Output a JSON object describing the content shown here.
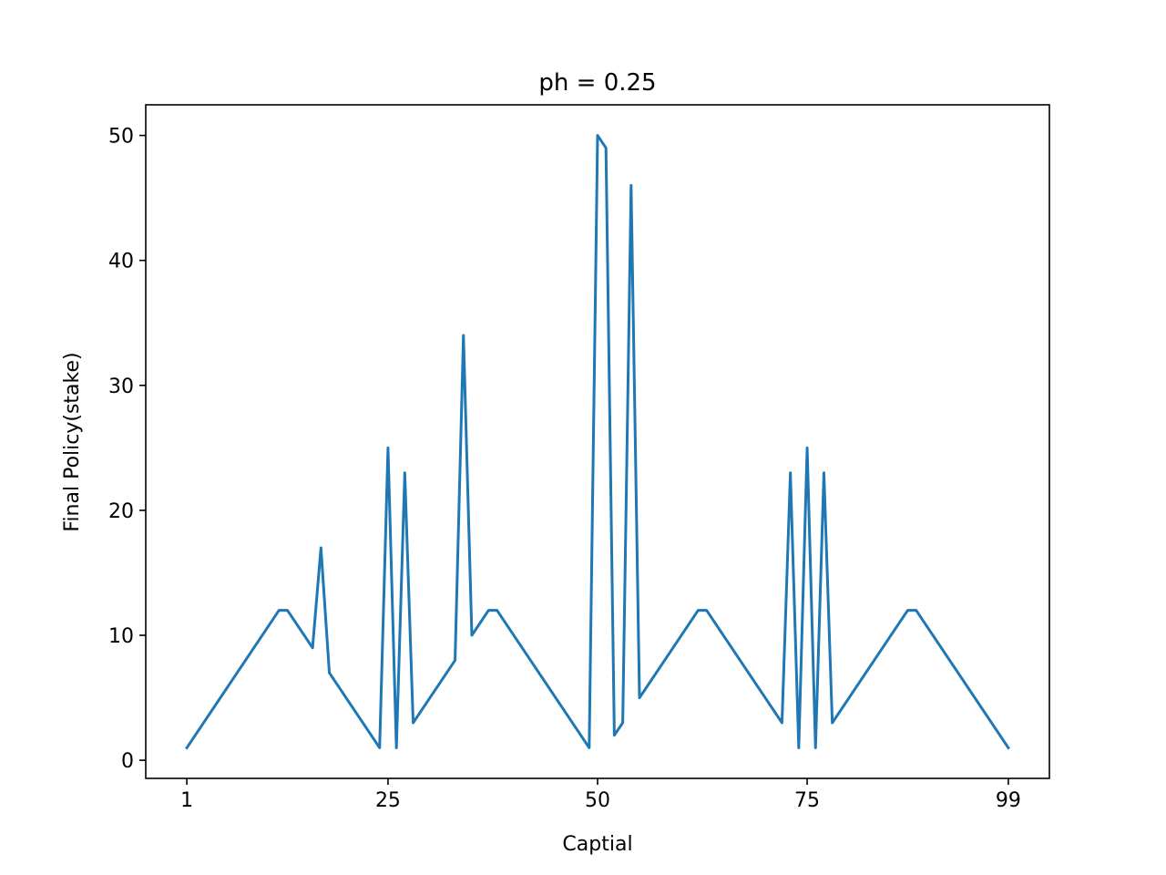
{
  "chart_data": {
    "type": "line",
    "title": "ph = 0.25",
    "xlabel": "Captial",
    "ylabel": "Final Policy(stake)",
    "xlim": [
      -3.9,
      103.9
    ],
    "ylim": [
      -1.45,
      52.45
    ],
    "xticks": [
      1,
      25,
      50,
      75,
      99
    ],
    "xtick_labels": [
      "1",
      "25",
      "50",
      "75",
      "99"
    ],
    "yticks": [
      0,
      10,
      20,
      30,
      40,
      50
    ],
    "ytick_labels": [
      "0",
      "10",
      "20",
      "30",
      "40",
      "50"
    ],
    "grid": false,
    "line_color": "#1f77b4",
    "series": [
      {
        "x": [
          1,
          12,
          13,
          16,
          17,
          18,
          24,
          25,
          26,
          27,
          28,
          33,
          34,
          35,
          37,
          38,
          49,
          50,
          51,
          52,
          53,
          54,
          55,
          62,
          63,
          72,
          73,
          74,
          75,
          76,
          77,
          78,
          87,
          88,
          99
        ],
        "values": [
          1,
          12,
          12,
          9,
          17,
          7,
          1,
          25,
          1,
          23,
          3,
          8,
          34,
          10,
          12,
          12,
          1,
          50,
          49,
          2,
          3,
          46,
          5,
          12,
          12,
          3,
          23,
          1,
          25,
          1,
          23,
          3,
          12,
          12,
          1
        ]
      }
    ]
  }
}
